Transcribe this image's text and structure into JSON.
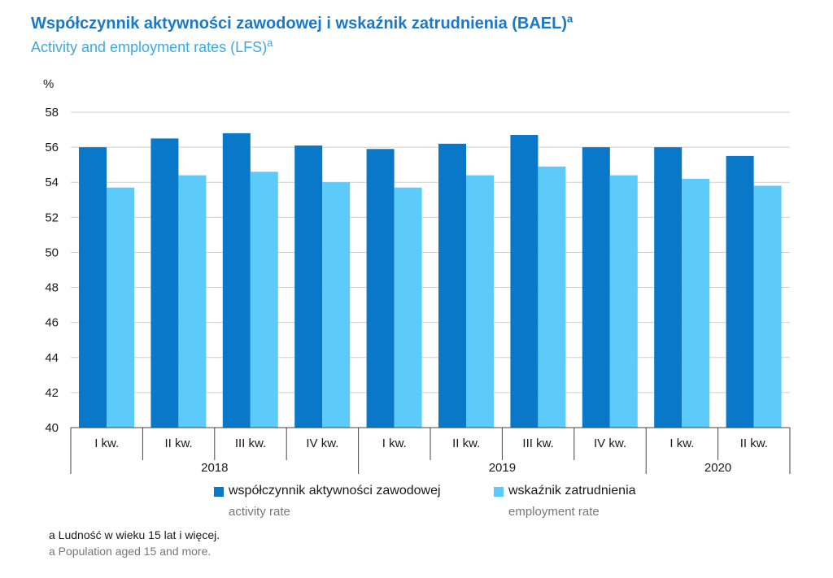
{
  "title": {
    "pl": "Współczynnik aktywności zawodowej i wskaźnik zatrudnienia (BAEL)",
    "en": "Activity and employment rates (LFS)",
    "sup": "a"
  },
  "chart_data": {
    "type": "bar",
    "ylabel": "%",
    "ylim": [
      40,
      58
    ],
    "yticks": [
      40,
      42,
      44,
      46,
      48,
      50,
      52,
      54,
      56,
      58
    ],
    "categories": [
      "I kw.",
      "II kw.",
      "III kw.",
      "IV kw.",
      "I kw.",
      "II kw.",
      "III kw.",
      "IV kw.",
      "I kw.",
      "II kw."
    ],
    "groups": [
      {
        "label": "2018",
        "start": 0,
        "count": 4
      },
      {
        "label": "2019",
        "start": 4,
        "count": 4
      },
      {
        "label": "2020",
        "start": 8,
        "count": 2
      }
    ],
    "series": [
      {
        "name": "współczynnik aktywności zawodowej",
        "name_en": "activity rate",
        "color": "#0a78c8",
        "values": [
          56.0,
          56.5,
          56.8,
          56.1,
          55.9,
          56.2,
          56.7,
          56.0,
          56.0,
          55.5
        ]
      },
      {
        "name": "wskaźnik zatrudnienia",
        "name_en": "employment rate",
        "color": "#5ccbfa",
        "values": [
          53.7,
          54.4,
          54.6,
          54.0,
          53.7,
          54.4,
          54.9,
          54.4,
          54.2,
          53.8
        ]
      }
    ],
    "grid": true
  },
  "footnote": {
    "pl": "a Ludność w wieku 15 lat i więcej.",
    "en": "a Population aged 15 and more."
  }
}
